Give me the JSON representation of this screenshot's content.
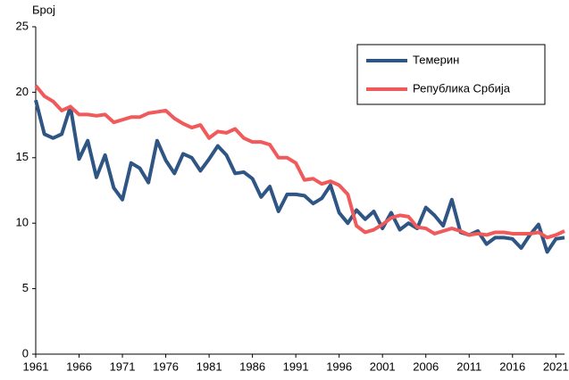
{
  "chart_data": {
    "type": "line",
    "ylabel": "Број",
    "x": [
      1961,
      1962,
      1963,
      1964,
      1965,
      1966,
      1967,
      1968,
      1969,
      1970,
      1971,
      1972,
      1973,
      1974,
      1975,
      1976,
      1977,
      1978,
      1979,
      1980,
      1981,
      1982,
      1983,
      1984,
      1985,
      1986,
      1987,
      1988,
      1989,
      1990,
      1991,
      1992,
      1993,
      1994,
      1995,
      1996,
      1997,
      1998,
      1999,
      2000,
      2001,
      2002,
      2003,
      2004,
      2005,
      2006,
      2007,
      2008,
      2009,
      2010,
      2011,
      2012,
      2013,
      2014,
      2015,
      2016,
      2017,
      2018,
      2019,
      2020,
      2021,
      2022
    ],
    "series": [
      {
        "name": "Темерин",
        "color": "#2e5584",
        "values": [
          19.4,
          16.8,
          16.5,
          16.8,
          18.9,
          14.9,
          16.3,
          13.5,
          15.2,
          12.7,
          11.8,
          14.6,
          14.2,
          13.1,
          16.3,
          14.8,
          13.8,
          15.3,
          15.0,
          14.0,
          14.9,
          15.9,
          15.2,
          13.8,
          13.9,
          13.4,
          12.0,
          12.8,
          10.9,
          12.2,
          12.2,
          12.1,
          11.5,
          11.9,
          12.9,
          10.8,
          10.0,
          11.0,
          10.3,
          10.9,
          9.6,
          10.8,
          9.5,
          10.0,
          9.6,
          11.2,
          10.6,
          9.8,
          11.8,
          9.3,
          9.1,
          9.4,
          8.4,
          8.9,
          8.9,
          8.8,
          8.1,
          9.1,
          9.9,
          7.8,
          8.8,
          8.9
        ]
      },
      {
        "name": "Република Србија",
        "color": "#f05a5a",
        "values": [
          20.5,
          19.7,
          19.3,
          18.6,
          18.9,
          18.3,
          18.3,
          18.2,
          18.3,
          17.7,
          17.9,
          18.1,
          18.1,
          18.4,
          18.5,
          18.6,
          18.0,
          17.6,
          17.3,
          17.5,
          16.5,
          17.0,
          16.9,
          17.2,
          16.5,
          16.2,
          16.2,
          16.0,
          15.0,
          15.0,
          14.6,
          13.3,
          13.4,
          13.0,
          13.2,
          12.9,
          12.2,
          9.8,
          9.3,
          9.5,
          9.9,
          10.4,
          10.6,
          10.5,
          9.7,
          9.6,
          9.2,
          9.4,
          9.6,
          9.4,
          9.1,
          9.2,
          9.1,
          9.3,
          9.3,
          9.2,
          9.2,
          9.2,
          9.3,
          8.9,
          9.1,
          9.4
        ]
      }
    ],
    "xlim": [
      1961,
      2022
    ],
    "xticks": [
      1961,
      1966,
      1971,
      1976,
      1981,
      1986,
      1991,
      1996,
      2001,
      2006,
      2011,
      2016,
      2021
    ],
    "ylim": [
      0,
      25
    ],
    "yticks": [
      0,
      5,
      10,
      15,
      20,
      25
    ],
    "grid": false,
    "legend": "upper right"
  }
}
